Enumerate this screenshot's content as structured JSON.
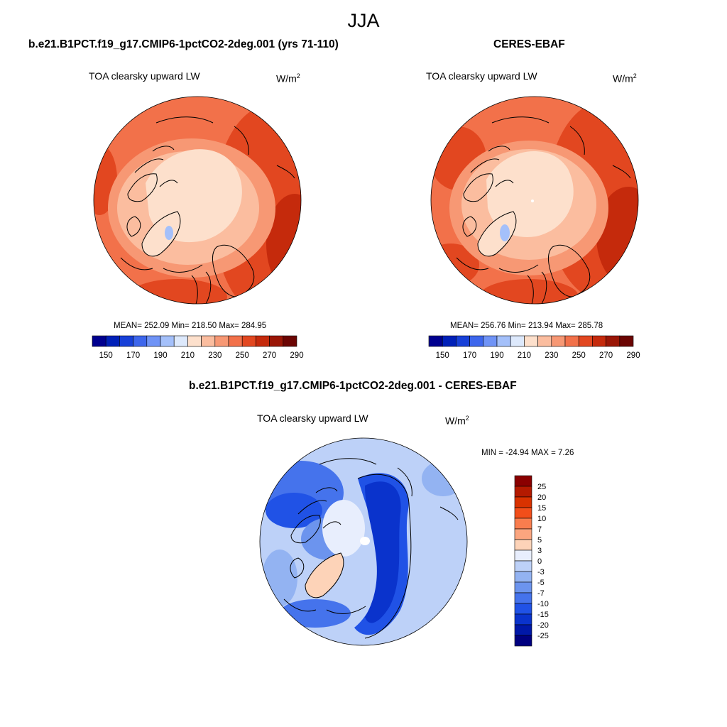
{
  "title": "JJA",
  "panels": [
    {
      "id": "model",
      "case_title": "b.e21.B1PCT.f19_g17.CMIP6-1pctCO2-2deg.001 (yrs 71-110)",
      "variable": "TOA clearsky upward LW",
      "units_base": "W/m",
      "units_exp": "2",
      "stats": "MEAN= 252.09  Min= 218.50  Max= 284.95",
      "colorbar_ticks": [
        "150",
        "170",
        "190",
        "210",
        "230",
        "250",
        "270",
        "290"
      ]
    },
    {
      "id": "obs",
      "case_title": "CERES-EBAF",
      "variable": "TOA clearsky upward LW",
      "units_base": "W/m",
      "units_exp": "2",
      "stats": "MEAN= 256.76  Min= 213.94  Max= 285.78",
      "colorbar_ticks": [
        "150",
        "170",
        "190",
        "210",
        "230",
        "250",
        "270",
        "290"
      ]
    },
    {
      "id": "diff",
      "case_title": "b.e21.B1PCT.f19_g17.CMIP6-1pctCO2-2deg.001 - CERES-EBAF",
      "variable": "TOA clearsky upward LW",
      "units_base": "W/m",
      "units_exp": "2",
      "stats": "MIN = -24.94 MAX =   7.26",
      "colorbar_ticks": [
        "25",
        "20",
        "15",
        "10",
        "7",
        "5",
        "3",
        "0",
        "-3",
        "-5",
        "-7",
        "-10",
        "-15",
        "-20",
        "-25"
      ]
    }
  ],
  "colors": {
    "abs_scale": [
      "#00008f",
      "#0020b8",
      "#1740d8",
      "#3d66ec",
      "#6f93f6",
      "#a4c0fa",
      "#dde9fc",
      "#fde0cc",
      "#fbbd9f",
      "#f79874",
      "#f2714a",
      "#e24720",
      "#c52a0c",
      "#9a1606",
      "#6b0503"
    ],
    "diff_scale": [
      "#8a0000",
      "#b41a00",
      "#d93200",
      "#f24e1a",
      "#f97d4e",
      "#fba57f",
      "#fdd3b8",
      "#e8eefd",
      "#bdd1f8",
      "#93b3f2",
      "#6c94ee",
      "#4573ec",
      "#2052e6",
      "#0a33cc",
      "#0018a8",
      "#000080"
    ],
    "coastline": "#000000"
  }
}
